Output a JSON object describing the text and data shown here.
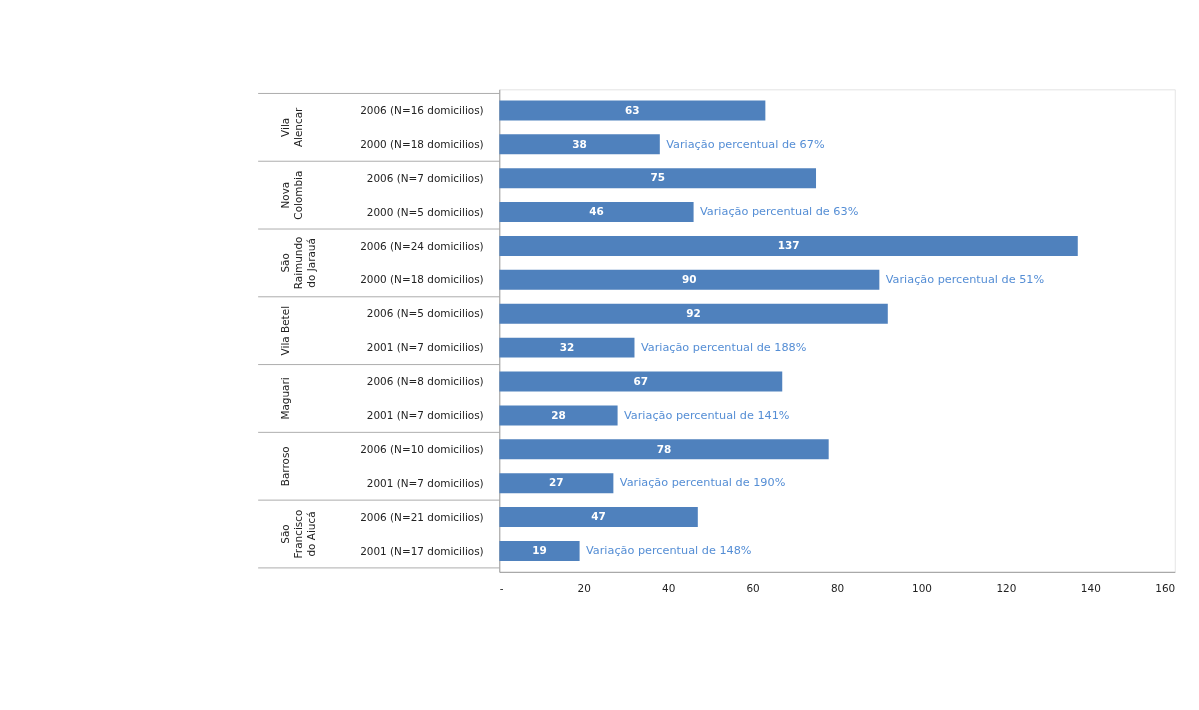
{
  "chart_data": {
    "type": "bar",
    "orientation": "horizontal",
    "data_labels": true,
    "grid": false,
    "categories": [
      "2006 (N=16 domicilios)",
      "2000 (N=18 domicilios)",
      "2006 (N=7 domicilios)",
      "2000 (N=5 domicilios)",
      "2006 (N=24 domicilios)",
      "2000 (N=18 domicilios)",
      "2006 (N=5 domicilios)",
      "2001 (N=7 domicilios)",
      "2006 (N=8 domicilios)",
      "2001 (N=7 domicilios)",
      "2006 (N=10 domicilios)",
      "2001 (N=7 domicilios)",
      "2006 (N=21 domicilios)",
      "2001 (N=17 domicilios)"
    ],
    "values": [
      63,
      38,
      75,
      46,
      137,
      90,
      92,
      32,
      67,
      28,
      78,
      27,
      47,
      19
    ],
    "color": "#4f81bd",
    "xlim": [
      0,
      160
    ],
    "xticks": [
      {
        "value": 0,
        "label": "-"
      },
      20,
      40,
      60,
      80,
      100,
      120,
      140,
      160
    ],
    "annotations": [
      "Vila Alencar",
      "Nova Colombia",
      "São Raimundo do Jarauá",
      "Vila Betel",
      "Maguari",
      "Barroso",
      "São Francisco do Aiucá",
      "Variação  percentual de 67%",
      "Variação  percentual de 63%",
      "Variação  percentual de 51%",
      "Variação  percentual de 188%",
      "Variação  percentual de 141%",
      "Variação  percentual de 190%",
      "Variação  percentual de 148%"
    ]
  }
}
